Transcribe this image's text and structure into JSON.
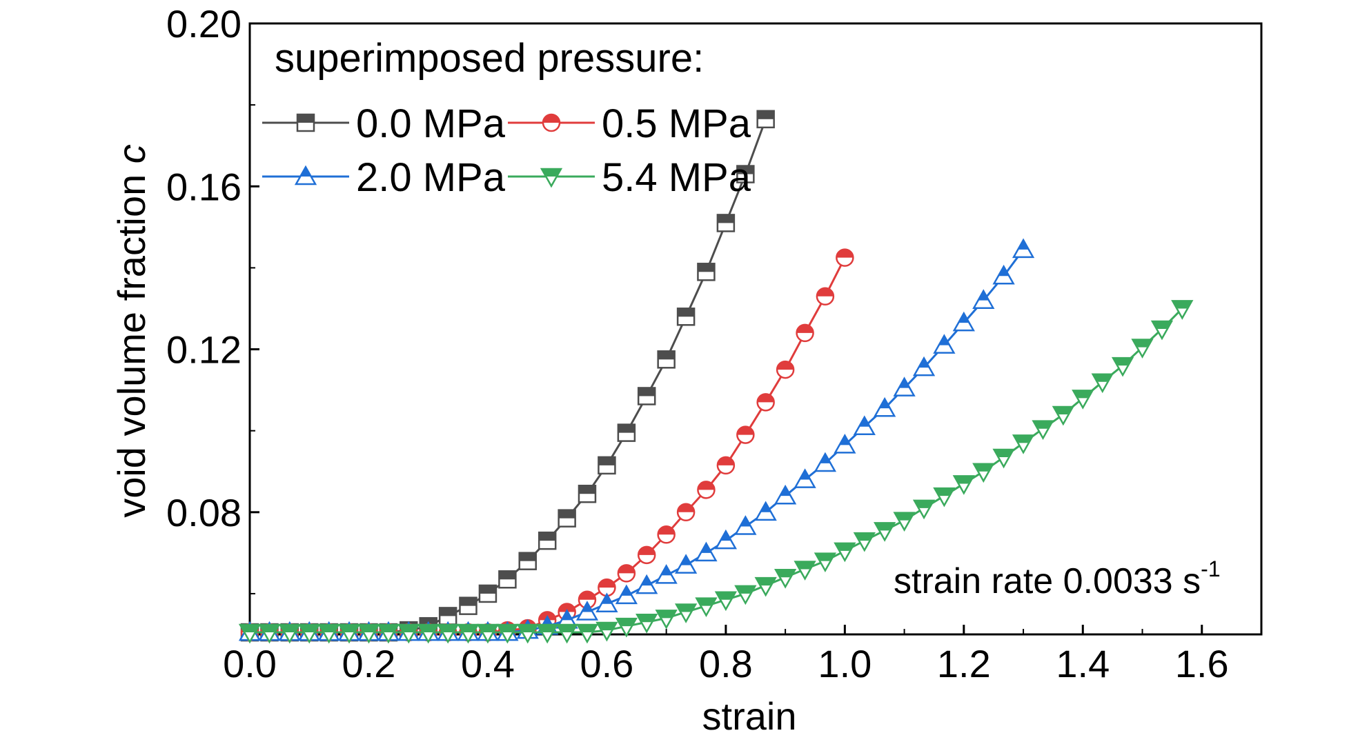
{
  "chart_data": {
    "type": "line",
    "xlabel": "strain",
    "ylabel_main": "void volume fraction ",
    "ylabel_italic": "c",
    "xlim": [
      0.0,
      1.7
    ],
    "ylim": [
      0.05,
      0.2
    ],
    "xticks": [
      "0.0",
      "0.2",
      "0.4",
      "0.6",
      "0.8",
      "1.0",
      "1.2",
      "1.4",
      "1.6"
    ],
    "xtick_values": [
      0.0,
      0.2,
      0.4,
      0.6,
      0.8,
      1.0,
      1.2,
      1.4,
      1.6
    ],
    "yticks": [
      "0.08",
      "0.12",
      "0.16",
      "0.20"
    ],
    "ytick_values": [
      0.08,
      0.12,
      0.16,
      0.2
    ],
    "legend_title": "superimposed pressure:",
    "legend_position": "top-left",
    "annotation_main": "strain rate 0.0033 s",
    "annotation_sup": "-1",
    "grid": false,
    "series": [
      {
        "name": "0.0 MPa",
        "color": "#4d4d4d",
        "marker": "half-square",
        "x": [
          0.0,
          0.033,
          0.067,
          0.1,
          0.133,
          0.167,
          0.2,
          0.233,
          0.267,
          0.3,
          0.333,
          0.367,
          0.4,
          0.433,
          0.467,
          0.5,
          0.533,
          0.567,
          0.6,
          0.633,
          0.667,
          0.7,
          0.733,
          0.767,
          0.8,
          0.833,
          0.867
        ],
        "y": [
          0.0505,
          0.0505,
          0.0505,
          0.0505,
          0.0505,
          0.0505,
          0.0505,
          0.0505,
          0.051,
          0.052,
          0.0545,
          0.057,
          0.06,
          0.0635,
          0.068,
          0.073,
          0.0785,
          0.0845,
          0.0915,
          0.0995,
          0.1085,
          0.1175,
          0.128,
          0.139,
          0.151,
          0.163,
          0.1765
        ]
      },
      {
        "name": "0.5 MPa",
        "color": "#e03c3c",
        "marker": "half-circle",
        "x": [
          0.0,
          0.033,
          0.067,
          0.1,
          0.133,
          0.167,
          0.2,
          0.233,
          0.267,
          0.3,
          0.333,
          0.367,
          0.4,
          0.433,
          0.467,
          0.5,
          0.533,
          0.567,
          0.6,
          0.633,
          0.667,
          0.7,
          0.733,
          0.767,
          0.8,
          0.833,
          0.867,
          0.9,
          0.933,
          0.967,
          1.0
        ],
        "y": [
          0.0505,
          0.0505,
          0.0505,
          0.0505,
          0.0505,
          0.0505,
          0.0505,
          0.0505,
          0.0505,
          0.0505,
          0.0505,
          0.0505,
          0.0505,
          0.051,
          0.0515,
          0.0535,
          0.0555,
          0.0585,
          0.0615,
          0.065,
          0.0695,
          0.0745,
          0.08,
          0.0855,
          0.0915,
          0.099,
          0.107,
          0.115,
          0.124,
          0.133,
          0.1425
        ]
      },
      {
        "name": "2.0 MPa",
        "color": "#1f6fd6",
        "marker": "half-triangle-up",
        "x": [
          0.0,
          0.033,
          0.067,
          0.1,
          0.133,
          0.167,
          0.2,
          0.233,
          0.267,
          0.3,
          0.333,
          0.367,
          0.4,
          0.433,
          0.467,
          0.5,
          0.533,
          0.567,
          0.6,
          0.633,
          0.667,
          0.7,
          0.733,
          0.767,
          0.8,
          0.833,
          0.867,
          0.9,
          0.933,
          0.967,
          1.0,
          1.033,
          1.067,
          1.1,
          1.133,
          1.167,
          1.2,
          1.233,
          1.267,
          1.3
        ],
        "y": [
          0.0505,
          0.0505,
          0.0505,
          0.0505,
          0.0505,
          0.0505,
          0.0505,
          0.0505,
          0.0505,
          0.0505,
          0.0505,
          0.0505,
          0.0505,
          0.0505,
          0.051,
          0.052,
          0.0535,
          0.0555,
          0.0575,
          0.0595,
          0.062,
          0.0645,
          0.067,
          0.07,
          0.073,
          0.0765,
          0.08,
          0.084,
          0.088,
          0.092,
          0.0965,
          0.101,
          0.1055,
          0.1105,
          0.1155,
          0.121,
          0.1265,
          0.132,
          0.138,
          0.1445
        ]
      },
      {
        "name": "5.4 MPa",
        "color": "#3aaa5c",
        "marker": "half-triangle-down",
        "x": [
          0.0,
          0.033,
          0.067,
          0.1,
          0.133,
          0.167,
          0.2,
          0.233,
          0.267,
          0.3,
          0.333,
          0.367,
          0.4,
          0.433,
          0.467,
          0.5,
          0.533,
          0.567,
          0.6,
          0.633,
          0.667,
          0.7,
          0.733,
          0.767,
          0.8,
          0.833,
          0.867,
          0.9,
          0.933,
          0.967,
          1.0,
          1.033,
          1.067,
          1.1,
          1.133,
          1.167,
          1.2,
          1.233,
          1.267,
          1.3,
          1.333,
          1.367,
          1.4,
          1.433,
          1.467,
          1.5,
          1.533,
          1.567
        ],
        "y": [
          0.0505,
          0.0505,
          0.0505,
          0.0505,
          0.0505,
          0.0505,
          0.0505,
          0.0505,
          0.0505,
          0.0505,
          0.0505,
          0.0505,
          0.0505,
          0.0505,
          0.0505,
          0.0505,
          0.0505,
          0.0505,
          0.051,
          0.052,
          0.053,
          0.054,
          0.0555,
          0.057,
          0.0585,
          0.06,
          0.062,
          0.064,
          0.066,
          0.068,
          0.0705,
          0.073,
          0.0755,
          0.078,
          0.081,
          0.084,
          0.087,
          0.09,
          0.0935,
          0.097,
          0.1005,
          0.104,
          0.108,
          0.112,
          0.116,
          0.1205,
          0.125,
          0.13
        ]
      }
    ]
  }
}
